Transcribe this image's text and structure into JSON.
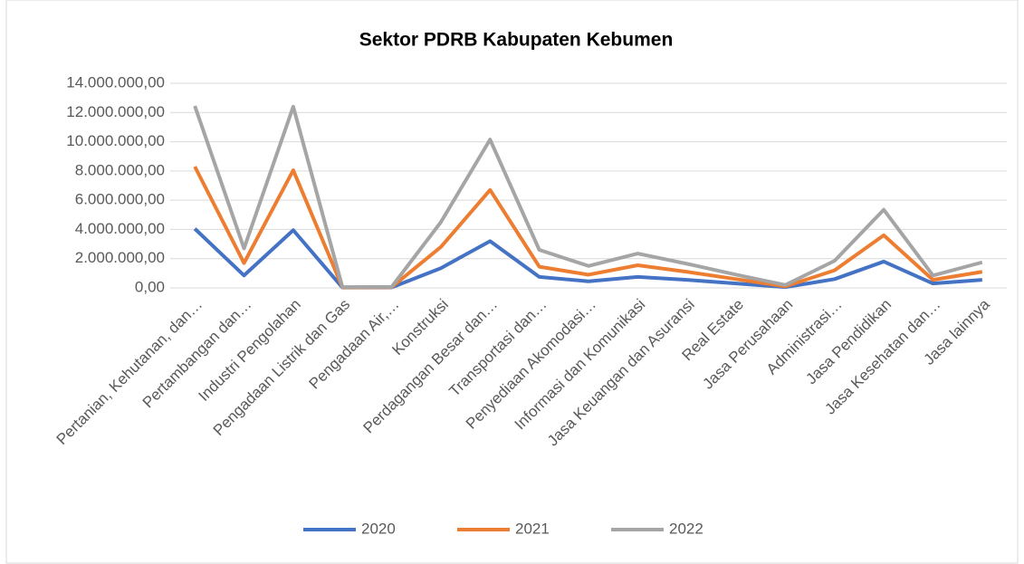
{
  "chart_data": {
    "type": "line",
    "title": "Sektor PDRB Kabupaten Kebumen",
    "categories": [
      "Pertanian, Kehutanan, dan…",
      "Pertambangan dan…",
      "Industri Pengolahan",
      "Pengadaan Listrik dan Gas",
      "Pengadaan Air,…",
      "Konstruksi",
      "Perdagangan Besar dan…",
      "Transportasi dan…",
      "Penyediaan Akomodasi…",
      "Informasi dan Komunikasi",
      "Jasa Keuangan dan Asuransi",
      "Real Estate",
      "Jasa Perusahaan",
      "Administrasi…",
      "Jasa Pendidikan",
      "Jasa Kesehatan dan…",
      "Jasa lainnya"
    ],
    "series": [
      {
        "name": "2020",
        "color": "#4472c4",
        "values": [
          4050000,
          850000,
          3950000,
          20000,
          30000,
          1350000,
          3200000,
          750000,
          450000,
          750000,
          550000,
          300000,
          50000,
          600000,
          1800000,
          300000,
          550000
        ]
      },
      {
        "name": "2021",
        "color": "#ed7d31",
        "values": [
          8300000,
          1700000,
          8050000,
          30000,
          50000,
          2800000,
          6700000,
          1450000,
          900000,
          1550000,
          1100000,
          600000,
          100000,
          1200000,
          3600000,
          550000,
          1100000
        ]
      },
      {
        "name": "2022",
        "color": "#a5a5a5",
        "values": [
          12450000,
          2700000,
          12400000,
          50000,
          70000,
          4500000,
          10150000,
          2600000,
          1500000,
          2350000,
          1650000,
          900000,
          200000,
          1850000,
          5350000,
          850000,
          1750000
        ]
      }
    ],
    "ylim": [
      0,
      14000000
    ],
    "yticks": [
      {
        "value": 0,
        "label": "0,00"
      },
      {
        "value": 2000000,
        "label": "2.000.000,00"
      },
      {
        "value": 4000000,
        "label": "4.000.000,00"
      },
      {
        "value": 6000000,
        "label": "6.000.000,00"
      },
      {
        "value": 8000000,
        "label": "8.000.000,00"
      },
      {
        "value": 10000000,
        "label": "10.000.000,00"
      },
      {
        "value": 12000000,
        "label": "12.000.000,00"
      },
      {
        "value": 14000000,
        "label": "14.000.000,00"
      }
    ],
    "grid": true,
    "legend": "bottom"
  }
}
